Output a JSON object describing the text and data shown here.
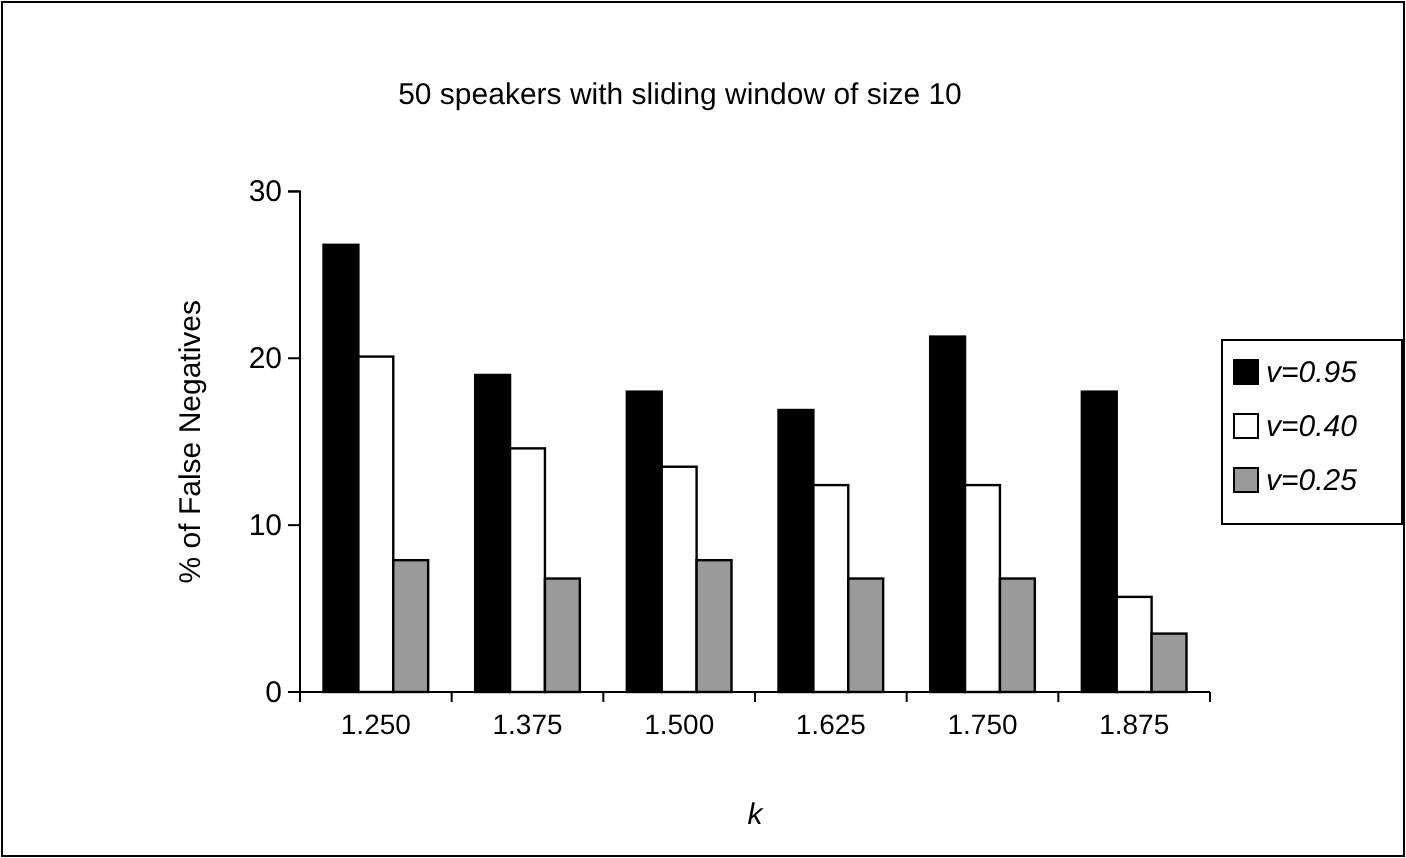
{
  "chart_data": {
    "type": "bar",
    "title": "50 speakers with sliding window of size 10",
    "xlabel": "k",
    "ylabel": "% of False Negatives",
    "categories": [
      "1.250",
      "1.375",
      "1.500",
      "1.625",
      "1.750",
      "1.875"
    ],
    "series": [
      {
        "name": "v=0.95",
        "color": "#000000",
        "values": [
          26.8,
          19.0,
          18.0,
          16.9,
          21.3,
          18.0
        ]
      },
      {
        "name": "v=0.40",
        "color": "#ffffff",
        "values": [
          20.1,
          14.6,
          13.5,
          12.4,
          12.4,
          5.7
        ]
      },
      {
        "name": "v=0.25",
        "color": "#9a9a9a",
        "values": [
          7.9,
          6.8,
          7.9,
          6.8,
          6.8,
          3.5
        ]
      }
    ],
    "ylim": [
      0,
      30
    ],
    "yticks": [
      0,
      10,
      20,
      30
    ],
    "grid": false,
    "legend": "right"
  }
}
